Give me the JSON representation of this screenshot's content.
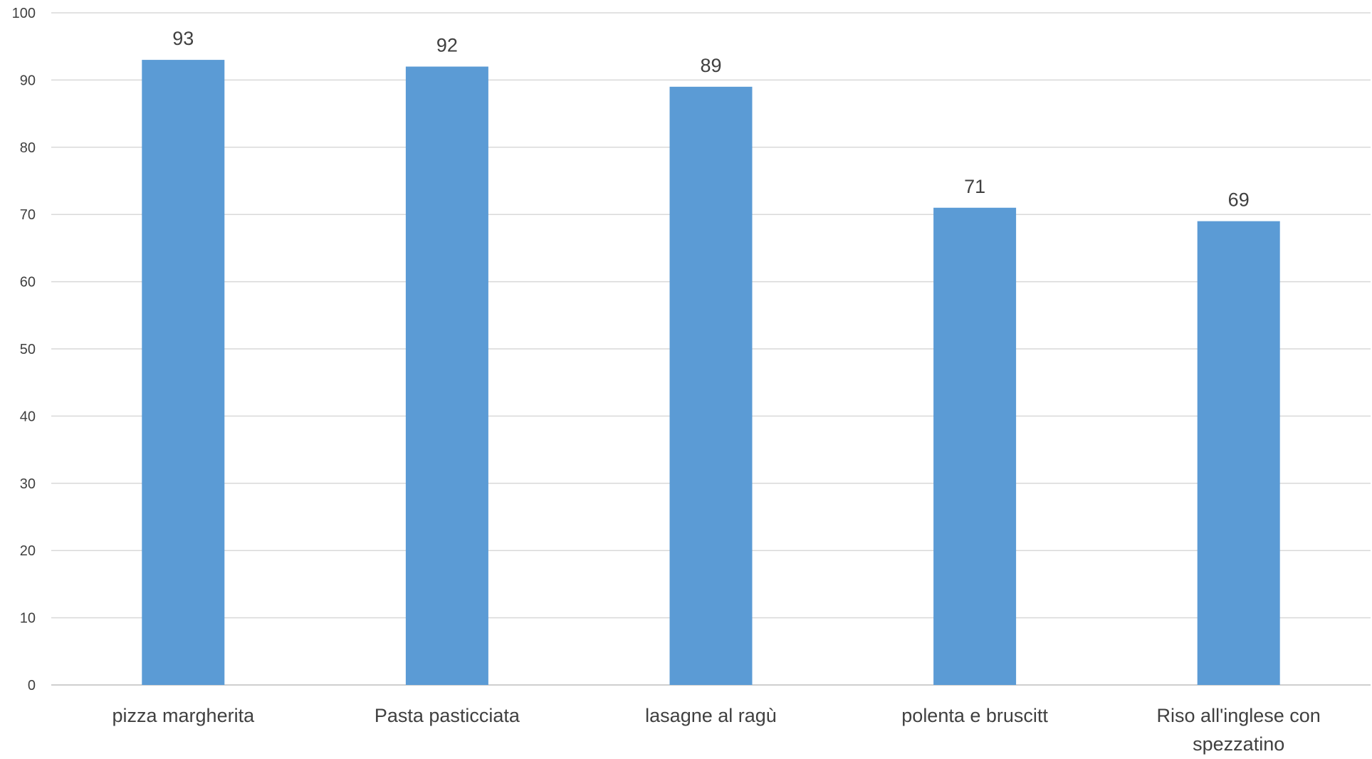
{
  "chart_data": {
    "type": "bar",
    "title": "",
    "xlabel": "",
    "ylabel": "",
    "categories": [
      [
        "pizza margherita"
      ],
      [
        "Pasta pasticciata"
      ],
      [
        "lasagne al ragù"
      ],
      [
        "polenta e bruscitt"
      ],
      [
        "Riso all'inglese con",
        "spezzatino"
      ]
    ],
    "values": [
      93,
      92,
      89,
      71,
      69
    ],
    "data_labels": [
      "93",
      "92",
      "89",
      "71",
      "69"
    ],
    "ylim": [
      0,
      100
    ],
    "yticks": [
      0,
      10,
      20,
      30,
      40,
      50,
      60,
      70,
      80,
      90,
      100
    ],
    "grid": true,
    "legend": "none",
    "colors": {
      "bar": "#5b9bd5",
      "grid": "#d9d9d9",
      "text": "#404040"
    }
  }
}
